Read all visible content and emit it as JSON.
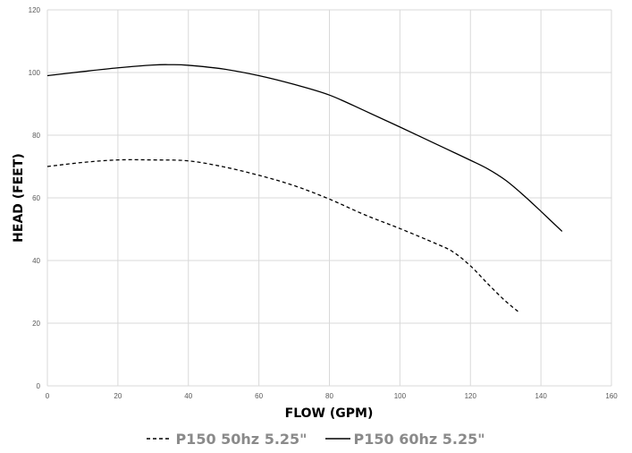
{
  "chart_data": {
    "type": "line",
    "title": "",
    "xlabel": "FLOW (GPM)",
    "ylabel": "HEAD (FEET)",
    "xlim": [
      0,
      160
    ],
    "ylim": [
      0,
      120
    ],
    "xticks": [
      "0",
      "20",
      "40",
      "60",
      "80",
      "100",
      "120",
      "140",
      "160"
    ],
    "yticks": [
      "0",
      "20",
      "40",
      "60",
      "80",
      "100",
      "120"
    ],
    "grid": true,
    "legend_position": "bottom",
    "series": [
      {
        "name": "P150 50hz 5.25\"",
        "style": "dashed",
        "color": "#000000",
        "x": [
          0,
          10,
          20,
          30,
          40,
          50,
          60,
          70,
          80,
          90,
          100,
          110,
          115,
          120,
          125,
          130,
          134
        ],
        "y": [
          70,
          71.3,
          72.1,
          72.1,
          71.8,
          69.9,
          67.2,
          63.9,
          59.6,
          54.6,
          50.2,
          45.5,
          42.8,
          38.3,
          32.5,
          27.0,
          23.3
        ]
      },
      {
        "name": "P150 60hz 5.25\"",
        "style": "solid",
        "color": "#000000",
        "x": [
          0,
          10,
          20,
          30,
          35,
          40,
          50,
          60,
          70,
          80,
          90,
          100,
          110,
          120,
          125,
          130,
          135,
          140,
          146
        ],
        "y": [
          99,
          100.3,
          101.5,
          102.4,
          102.5,
          102.3,
          101.1,
          99.0,
          96.2,
          92.8,
          87.8,
          82.6,
          77.3,
          72.0,
          69.2,
          65.6,
          60.9,
          55.7,
          49.3
        ]
      }
    ]
  }
}
